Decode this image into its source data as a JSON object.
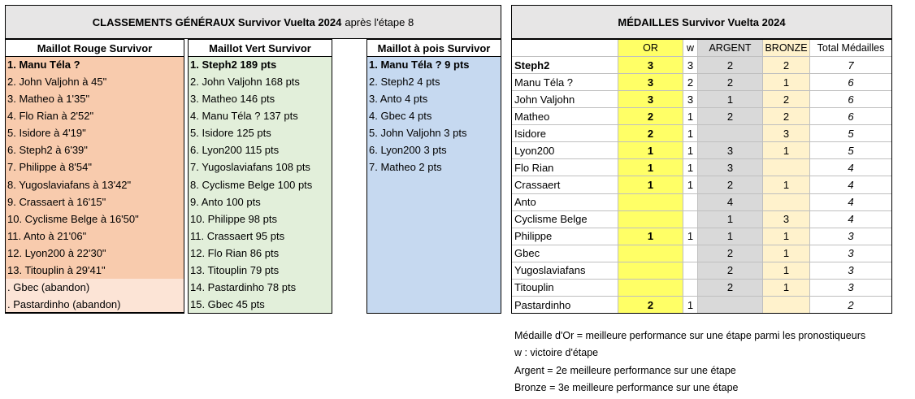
{
  "standings": {
    "title_bold": "CLASSEMENTS GÉNÉRAUX Survivor Vuelta 2024",
    "title_rest": "après l'étape 8",
    "lists": [
      {
        "header": "Maillot Rouge Survivor",
        "ranked": [
          "1. Manu Téla ?",
          "2. John Valjohn à 45\"",
          "3. Matheo à 1'35\"",
          "4. Flo Rian à 2'52\"",
          "5. Isidore à 4'19\"",
          "6. Steph2 à 6'39\"",
          "7. Philippe à 8'54\"",
          "8. Yugoslaviafans à 13'42\"",
          "9. Crassaert à 16'15\"",
          "10. Cyclisme Belge à 16'50\"",
          "11. Anto à 21'06\"",
          "12. Lyon200 à 22'30\"",
          "13. Titouplin à 29'41\""
        ],
        "abandons": [
          ". Gbec (abandon)",
          ". Pastardinho (abandon)"
        ]
      },
      {
        "header": "Maillot Vert Survivor",
        "ranked": [
          "1. Steph2 189 pts",
          "2. John Valjohn 168 pts",
          "3. Matheo 146 pts",
          "4. Manu Téla ? 137 pts",
          "5. Isidore 125 pts",
          "6. Lyon200 115 pts",
          "7. Yugoslaviafans 108 pts",
          "8. Cyclisme Belge 100 pts",
          "9. Anto 100 pts",
          "10. Philippe 98 pts",
          "11. Crassaert 95 pts",
          "12. Flo Rian 86 pts",
          "13. Titouplin 79 pts",
          "14. Pastardinho 78 pts",
          "15. Gbec 45 pts"
        ],
        "abandons": []
      },
      {
        "header": "Maillot à pois Survivor",
        "ranked": [
          "1. Manu Téla ? 9 pts",
          "2. Steph2 4 pts",
          "3. Anto 4 pts",
          "4. Gbec 4 pts",
          "5. John Valjohn 3 pts",
          "6. Lyon200 3 pts",
          "7. Matheo 2 pts"
        ],
        "abandons": []
      }
    ]
  },
  "medals": {
    "title": "MÉDAILLES Survivor Vuelta 2024",
    "columns": [
      "OR",
      "w",
      "ARGENT",
      "BRONZE",
      "Total Médailles"
    ],
    "rows": [
      [
        "Steph2",
        3,
        3,
        2,
        2,
        7
      ],
      [
        "Manu Téla ?",
        3,
        2,
        2,
        1,
        6
      ],
      [
        "John Valjohn",
        3,
        3,
        1,
        2,
        6
      ],
      [
        "Matheo",
        2,
        1,
        2,
        2,
        6
      ],
      [
        "Isidore",
        2,
        1,
        null,
        3,
        5
      ],
      [
        "Lyon200",
        1,
        1,
        3,
        1,
        5
      ],
      [
        "Flo Rian",
        1,
        1,
        3,
        null,
        4
      ],
      [
        "Crassaert",
        1,
        1,
        2,
        1,
        4
      ],
      [
        "Anto",
        null,
        null,
        4,
        null,
        4
      ],
      [
        "Cyclisme Belge",
        null,
        null,
        1,
        3,
        4
      ],
      [
        "Philippe",
        1,
        1,
        1,
        1,
        3
      ],
      [
        "Gbec",
        null,
        null,
        2,
        1,
        3
      ],
      [
        "Yugoslaviafans",
        null,
        null,
        2,
        1,
        3
      ],
      [
        "Titouplin",
        null,
        null,
        2,
        1,
        3
      ],
      [
        "Pastardinho",
        2,
        1,
        null,
        null,
        2
      ]
    ],
    "notes": [
      "Médaille d'Or = meilleure performance sur une étape parmi les pronostiqueurs",
      "w : victoire d'étape",
      "Argent = 2e meilleure performance sur une étape",
      "Bronze = 3e meilleure performance sur une étape"
    ]
  }
}
